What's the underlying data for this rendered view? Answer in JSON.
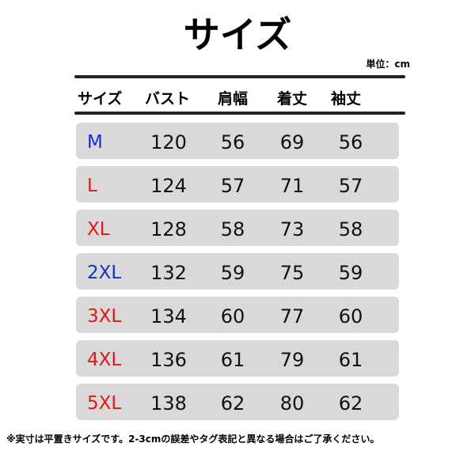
{
  "header": {
    "title": "サイズ",
    "unit": "単位：cm"
  },
  "table": {
    "columns": [
      "サイズ",
      "バスト",
      "肩幅",
      "着丈",
      "袖丈"
    ],
    "rows": [
      [
        "M",
        120,
        56,
        69,
        56
      ],
      [
        "L",
        124,
        57,
        71,
        57
      ],
      [
        "XL",
        128,
        58,
        73,
        58
      ],
      [
        "2XL",
        132,
        59,
        75,
        59
      ],
      [
        "3XL",
        134,
        60,
        77,
        60
      ],
      [
        "4XL",
        136,
        61,
        79,
        61
      ],
      [
        "5XL",
        138,
        62,
        80,
        62
      ]
    ]
  },
  "footnote": "※実寸は平置きサイズです。2-3cmの誤差やタグ表記と異なる場合はご了承ください。"
}
